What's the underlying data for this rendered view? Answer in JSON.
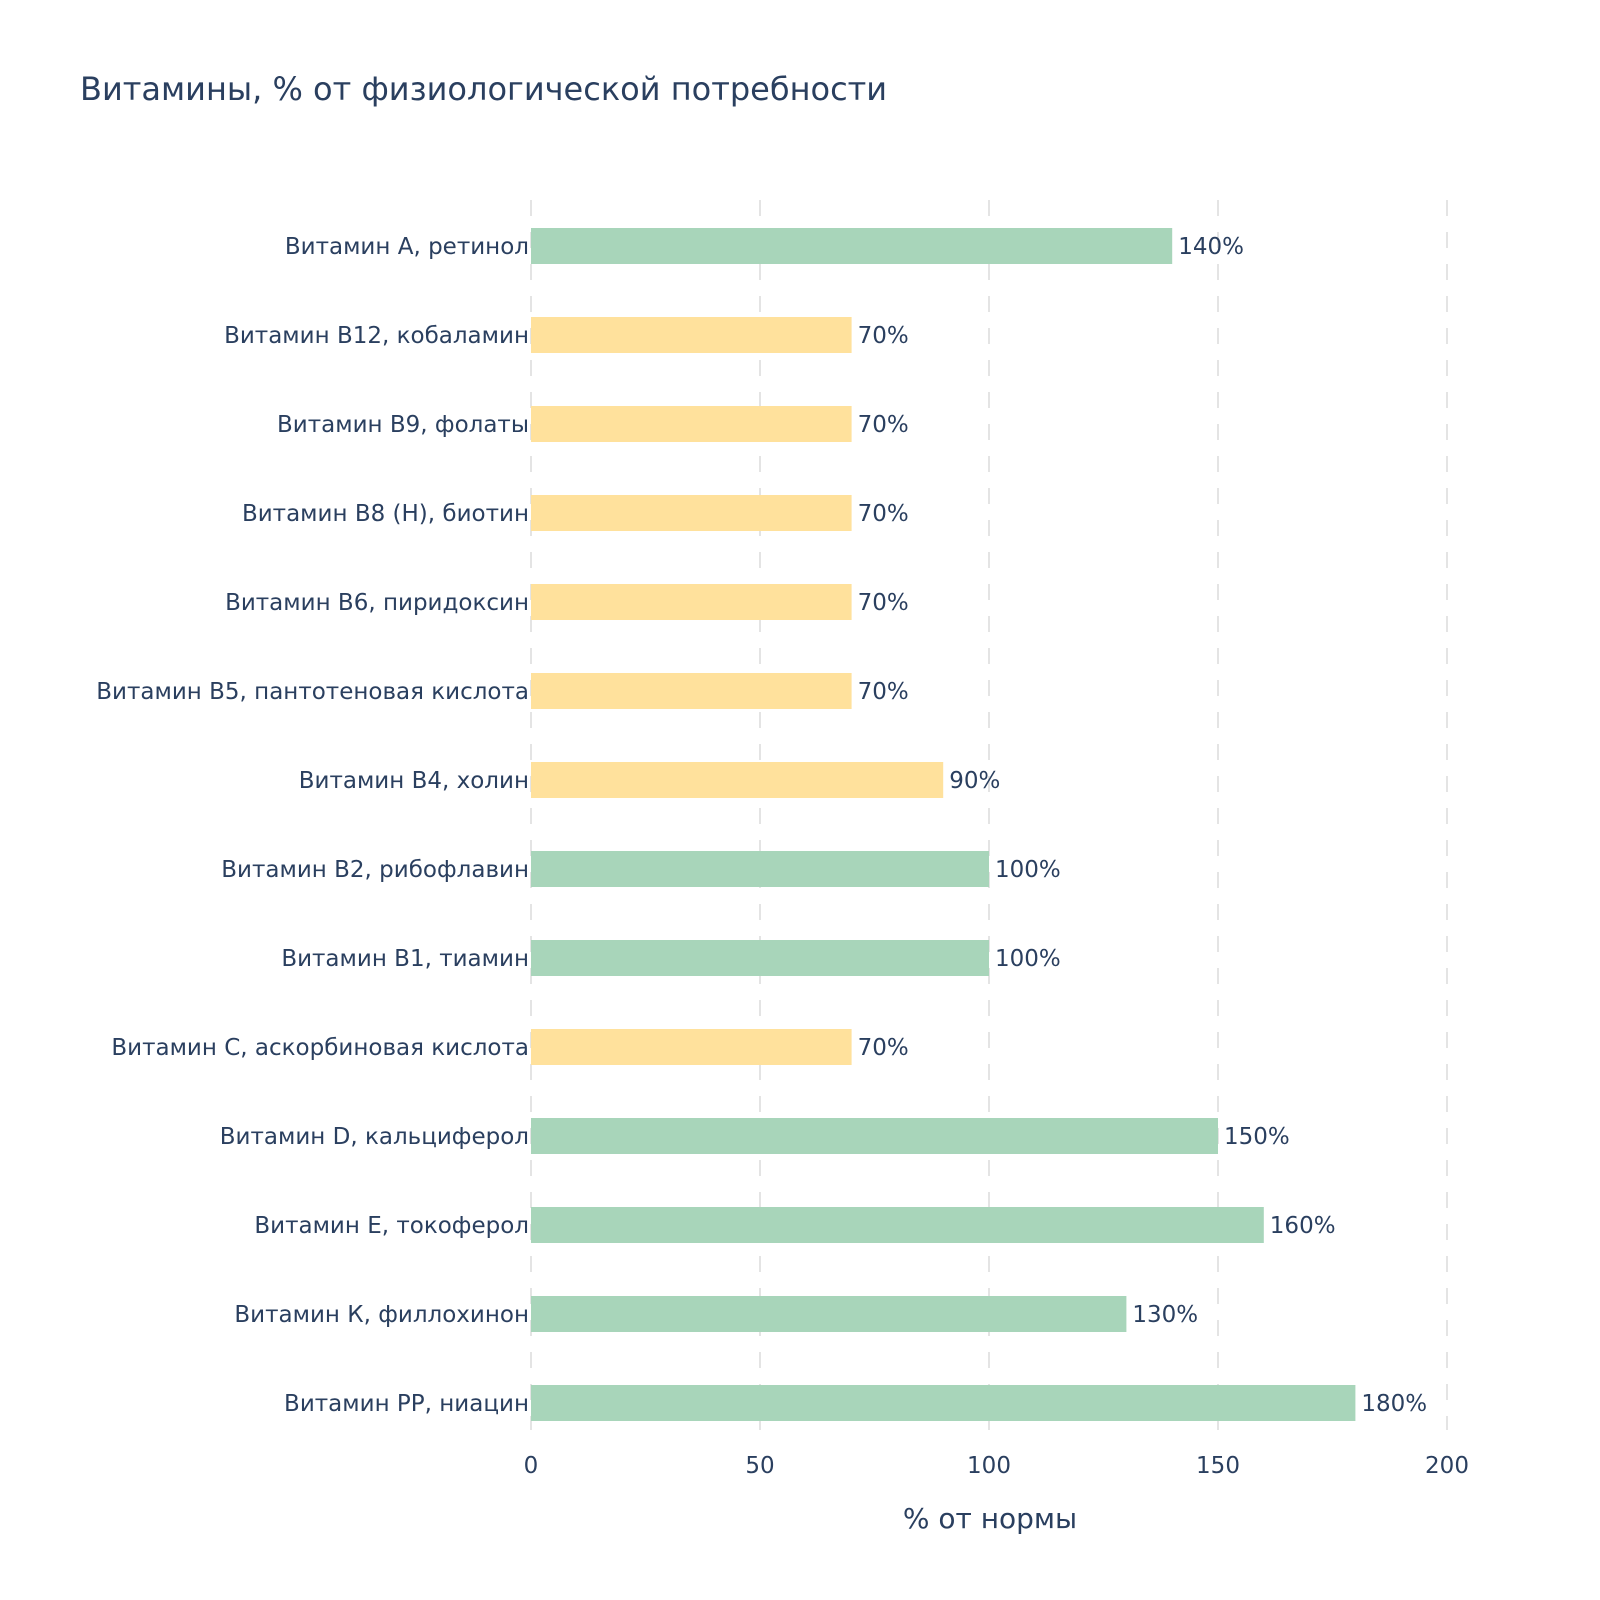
{
  "chart_data": {
    "type": "bar",
    "orientation": "horizontal",
    "title": "Витамины, % от физиологической потребности",
    "xlabel": "% от нормы",
    "ylabel": "",
    "xlim": [
      0,
      200
    ],
    "x_ticks": [
      0,
      50,
      100,
      150,
      200
    ],
    "grid": "vertical-dashed",
    "legend": "none",
    "colors": {
      "sufficient": "#a8d5ba",
      "deficient": "#ffe19c"
    },
    "categories": [
      "Витамин А, ретинол",
      "Витамин В12, кобаламин",
      "Витамин В9, фолаты",
      "Витамин В8 (Н), биотин",
      "Витамин В6, пиридоксин",
      "Витамин В5, пантотеновая кислота",
      "Витамин В4, холин",
      "Витамин В2, рибофлавин",
      "Витамин В1, тиамин",
      "Витамин С, аскорбиновая кислота",
      "Витамин D, кальциферол",
      "Витамин Е, токоферол",
      "Витамин К, филлохинон",
      "Витамин РР, ниацин"
    ],
    "values": [
      140,
      70,
      70,
      70,
      70,
      70,
      90,
      100,
      100,
      70,
      150,
      160,
      130,
      180
    ],
    "labels": [
      "140%",
      "70%",
      "70%",
      "70%",
      "70%",
      "70%",
      "90%",
      "100%",
      "100%",
      "70%",
      "150%",
      "160%",
      "130%",
      "180%"
    ],
    "bar_colors": [
      "#a8d5ba",
      "#ffe19c",
      "#ffe19c",
      "#ffe19c",
      "#ffe19c",
      "#ffe19c",
      "#ffe19c",
      "#a8d5ba",
      "#a8d5ba",
      "#ffe19c",
      "#a8d5ba",
      "#a8d5ba",
      "#a8d5ba",
      "#a8d5ba"
    ]
  }
}
